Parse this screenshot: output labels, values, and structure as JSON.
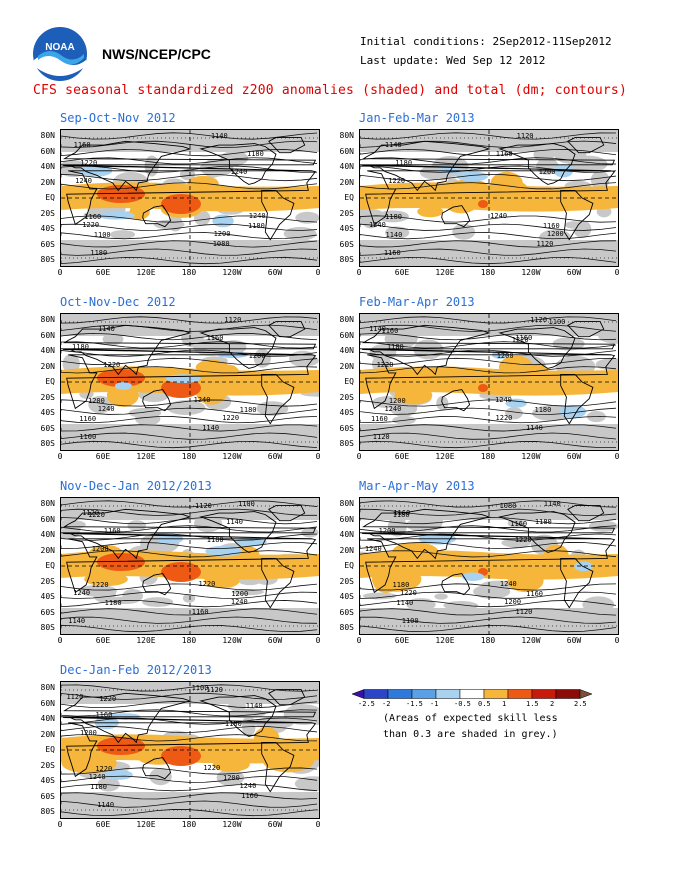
{
  "header": {
    "agency": "NWS/NCEP/CPC",
    "initial_conditions": "Initial conditions: 2Sep2012-11Sep2012",
    "last_update": "Last update: Wed Sep 12 2012",
    "logo_text": "NOAA"
  },
  "title": "CFS seasonal standardized z200 anomalies (shaded) and total (dm; contours)",
  "axes": {
    "lat_labels": [
      "80N",
      "60N",
      "40N",
      "20N",
      "EQ",
      "20S",
      "40S",
      "60S",
      "80S"
    ],
    "lon_labels": [
      "0",
      "60E",
      "120E",
      "180",
      "120W",
      "60W",
      "0"
    ]
  },
  "panels": [
    {
      "title": "Sep-Oct-Nov 2012",
      "contour_labels": [
        "1140",
        "1160",
        "1180",
        "1220",
        "1240",
        "1240",
        "1240",
        "1220",
        "1200",
        "1160",
        "1180",
        "1100",
        "1080",
        "1180"
      ],
      "strong_positive": true
    },
    {
      "title": "Jan-Feb-Mar 2013",
      "contour_labels": [
        "1120",
        "1140",
        "1160",
        "1180",
        "1200",
        "1220",
        "1240",
        "1240",
        "1200",
        "1180",
        "1160",
        "1140",
        "1120",
        "1160"
      ],
      "strong_positive": false
    },
    {
      "title": "Oct-Nov-Dec 2012",
      "contour_labels": [
        "1120",
        "1140",
        "1160",
        "1180",
        "1200",
        "1220",
        "1240",
        "1240",
        "1220",
        "1200",
        "1180",
        "1160",
        "1140",
        "1100"
      ],
      "strong_positive": true
    },
    {
      "title": "Feb-Mar-Apr 2013",
      "contour_labels": [
        "1120",
        "1140",
        "1160",
        "1180",
        "1200",
        "1220",
        "1240",
        "1240",
        "1220",
        "1200",
        "1180",
        "1160",
        "1140",
        "1120",
        "1100",
        "1160",
        "1220"
      ],
      "strong_positive": false
    },
    {
      "title": "Nov-Dec-Jan 2012/2013",
      "contour_labels": [
        "1100",
        "1120",
        "1140",
        "1160",
        "1180",
        "1200",
        "1220",
        "1240",
        "1240",
        "1220",
        "1200",
        "1180",
        "1160",
        "1140",
        "1120",
        "1220"
      ],
      "strong_positive": true
    },
    {
      "title": "Mar-Apr-May 2013",
      "contour_labels": [
        "1140",
        "1160",
        "1180",
        "1200",
        "1220",
        "1240",
        "1240",
        "1220",
        "1200",
        "1180",
        "1160",
        "1140",
        "1120",
        "1100",
        "1080",
        "1180",
        "1160"
      ],
      "strong_positive": false
    },
    {
      "title": "Dec-Jan-Feb 2012/2013",
      "contour_labels": [
        "1100",
        "1120",
        "1140",
        "1160",
        "1180",
        "1200",
        "1220",
        "1240",
        "1240",
        "1220",
        "1200",
        "1180",
        "1160",
        "1140",
        "1120",
        "1220"
      ],
      "strong_positive": true
    }
  ],
  "colorbar": {
    "labels": [
      "-2.5",
      "-2",
      "-1.5",
      "-1",
      "-0.5",
      "0.5",
      "1",
      "1.5",
      "2",
      "2.5"
    ],
    "colors": [
      "#3d0fa6",
      "#2a45c8",
      "#2f78dc",
      "#5aa0e6",
      "#a8d2f0",
      "#ffffff",
      "#f6b63c",
      "#ee5a14",
      "#c81a0a",
      "#8c0a0a",
      "#7a4e3a"
    ],
    "note_line1": "(Areas of expected skill less",
    "note_line2": "than 0.3 are shaded in grey.)"
  },
  "colors": {
    "title_red": "#e00000",
    "panel_title_blue": "#2a6fd6",
    "skill_grey": "#c8c8c8",
    "positive_orange": "#f6b63c",
    "positive_red": "#ee5a14",
    "negative_blue": "#a8d2f0"
  }
}
